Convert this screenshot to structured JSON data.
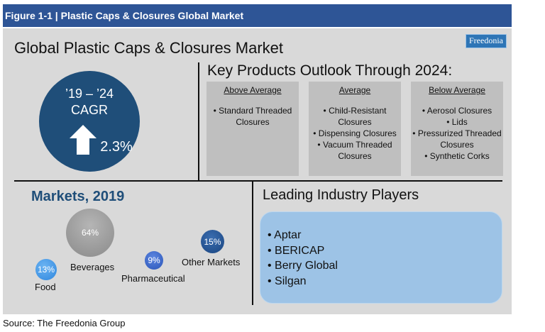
{
  "header": {
    "title": "Figure 1-1 | Plastic Caps & Closures Global Market"
  },
  "main_title": "Global Plastic Caps & Closures Market",
  "logo": {
    "text": "Freedonia"
  },
  "cagr": {
    "period": "’19 – ’24",
    "label": "CAGR",
    "value": "2.3%",
    "direction": "up-arrow-icon"
  },
  "outlook": {
    "title": "Key Products Outlook Through 2024:",
    "columns": [
      {
        "heading": "Above Average",
        "items": [
          "• Standard Threaded Closures"
        ]
      },
      {
        "heading": "Average",
        "items": [
          "• Child-Resistant Closures",
          "• Dispensing Closures",
          "• Vacuum Threaded Closures"
        ]
      },
      {
        "heading": "Below Average",
        "items": [
          "• Aerosol Closures",
          "• Lids",
          "• Pressurized Threaded Closures",
          "• Synthetic Corks"
        ]
      }
    ]
  },
  "markets": {
    "title": "Markets, 2019",
    "items": [
      {
        "label": "Food",
        "value": "13%",
        "color": "#3a8ee6"
      },
      {
        "label": "Beverages",
        "value": "64%",
        "color": "#9a9a9a"
      },
      {
        "label": "Pharmaceutical",
        "value": "9%",
        "color": "#3461c8"
      },
      {
        "label": "Other Markets",
        "value": "15%",
        "color": "#1f4e8a"
      }
    ]
  },
  "players": {
    "title": "Leading Industry Players",
    "items": [
      "• Aptar",
      "• BERICAP",
      "• Berry Global",
      "• Silgan"
    ]
  },
  "source": "Source: The Freedonia Group"
}
